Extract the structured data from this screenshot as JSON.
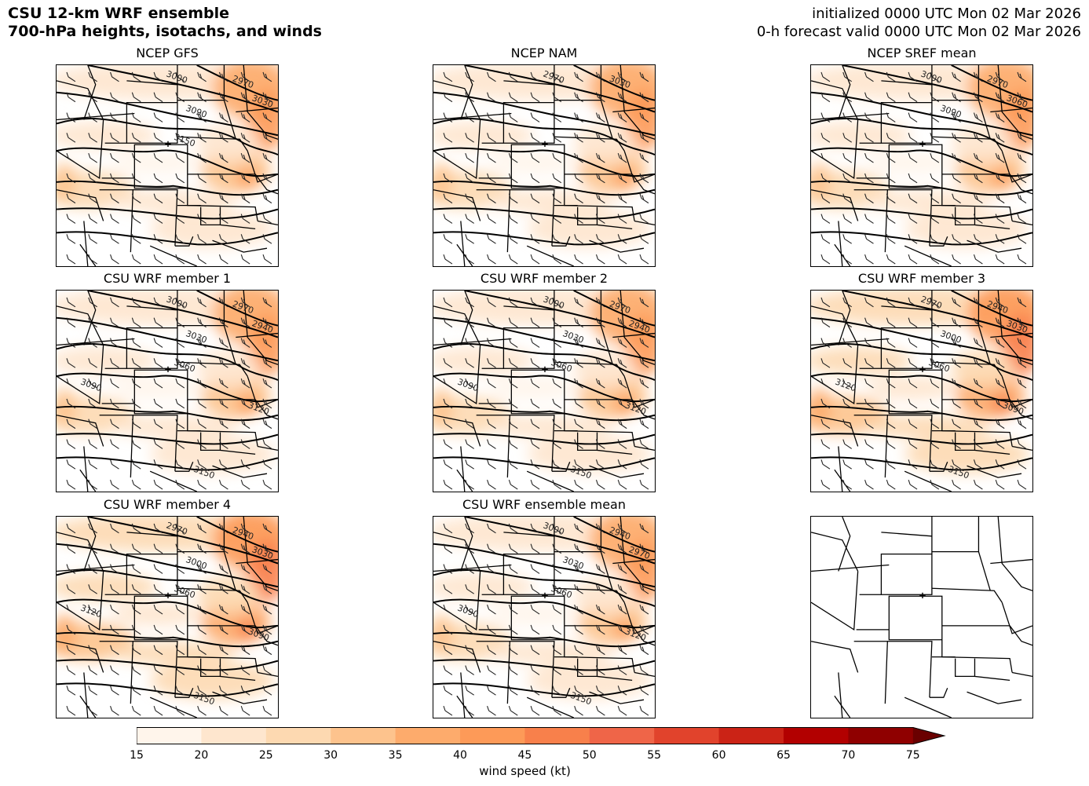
{
  "header": {
    "title_line1": "CSU 12-km WRF ensemble",
    "title_line2": "700-hPa heights, isotachs, and winds",
    "init": "initialized 0000 UTC Mon 02 Mar 2026",
    "valid": "0-h forecast valid 0000 UTC Mon 02 Mar 2026"
  },
  "panels": [
    {
      "title": "NCEP GFS",
      "contour_labels": [
        "3000",
        "2970",
        "3030",
        "3090",
        "3150"
      ],
      "intensity": 0.9
    },
    {
      "title": "NCEP NAM",
      "contour_labels": [
        "2970",
        "3030"
      ],
      "intensity": 0.95
    },
    {
      "title": "NCEP SREF mean",
      "contour_labels": [
        "3000",
        "2970",
        "3060",
        "3090"
      ],
      "intensity": 0.9
    },
    {
      "title": "CSU WRF member 1",
      "contour_labels": [
        "3000",
        "2970",
        "2940",
        "3030",
        "3060",
        "3090",
        "3120",
        "3150"
      ],
      "intensity": 0.95
    },
    {
      "title": "CSU WRF member 2",
      "contour_labels": [
        "3000",
        "2970",
        "2940",
        "3030",
        "3060",
        "3090",
        "3120",
        "3150"
      ],
      "intensity": 0.95
    },
    {
      "title": "CSU WRF member 3",
      "contour_labels": [
        "2970",
        "2940",
        "3030",
        "3000",
        "3060",
        "3120",
        "3090",
        "3150"
      ],
      "intensity": 1.0
    },
    {
      "title": "CSU WRF member 4",
      "contour_labels": [
        "2970",
        "2940",
        "3030",
        "3000",
        "3060",
        "3120",
        "3090",
        "3150"
      ],
      "intensity": 1.0
    },
    {
      "title": "CSU WRF ensemble mean",
      "contour_labels": [
        "3000",
        "2940",
        "2970",
        "3030",
        "3060",
        "3090",
        "3120",
        "3150"
      ],
      "intensity": 0.9
    },
    {
      "title": "",
      "contour_labels": [],
      "intensity": 0
    }
  ],
  "chart_data": {
    "type": "heatmap",
    "title": "700-hPa heights, isotachs, and winds",
    "variable": "wind speed (kt)",
    "contour_variable": "700-hPa geopotential height (m)",
    "colorbar": {
      "label": "wind speed (kt)",
      "ticks": [
        "15",
        "20",
        "25",
        "30",
        "35",
        "40",
        "45",
        "50",
        "55",
        "60",
        "65",
        "70",
        "75"
      ],
      "colors": [
        "#fff5eb",
        "#fee6ce",
        "#fdd9b1",
        "#fdc38d",
        "#fdab6c",
        "#fd9a58",
        "#f8804b",
        "#ef6548",
        "#e1432c",
        "#cb2316",
        "#b20000",
        "#8f0000",
        "#6a0000"
      ],
      "extend": "max"
    }
  }
}
